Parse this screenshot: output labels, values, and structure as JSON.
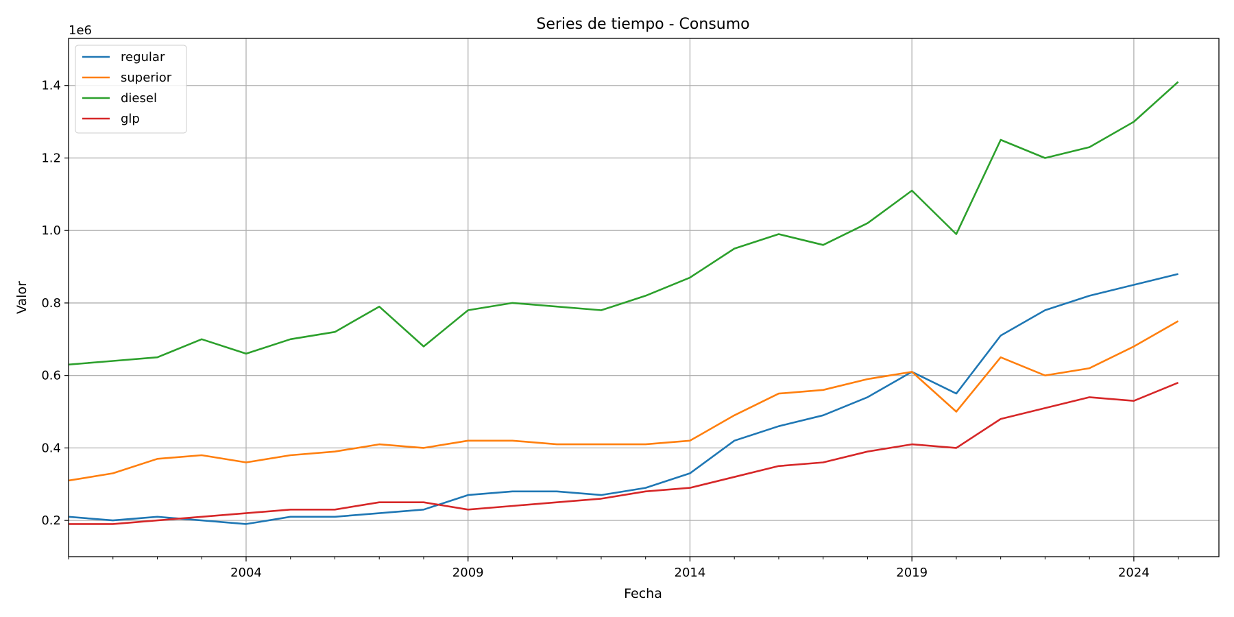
{
  "chart_data": {
    "type": "line",
    "title": "Series de tiempo - Consumo",
    "xlabel": "Fecha",
    "ylabel": "Valor",
    "y_scale_label": "1e6",
    "xlim": [
      "2000-01",
      "2025-12"
    ],
    "ylim": [
      0.1,
      1.53
    ],
    "x_ticks": [
      "2004",
      "2009",
      "2014",
      "2019",
      "2024"
    ],
    "y_ticks": [
      "0.2",
      "0.4",
      "0.6",
      "0.8",
      "1.0",
      "1.2",
      "1.4"
    ],
    "grid": true,
    "legend_position": "top-left",
    "x": [
      "2000",
      "2001",
      "2002",
      "2003",
      "2004",
      "2005",
      "2006",
      "2007",
      "2008",
      "2009",
      "2010",
      "2011",
      "2012",
      "2013",
      "2014",
      "2015",
      "2016",
      "2017",
      "2018",
      "2019",
      "2020",
      "2021",
      "2022",
      "2023",
      "2024",
      "2025"
    ],
    "series": [
      {
        "name": "regular",
        "color": "#1f77b4",
        "values": [
          0.21,
          0.2,
          0.21,
          0.2,
          0.19,
          0.21,
          0.21,
          0.22,
          0.23,
          0.27,
          0.28,
          0.28,
          0.27,
          0.29,
          0.33,
          0.42,
          0.46,
          0.49,
          0.54,
          0.61,
          0.55,
          0.71,
          0.78,
          0.82,
          0.85,
          0.88
        ]
      },
      {
        "name": "superior",
        "color": "#ff7f0e",
        "values": [
          0.31,
          0.33,
          0.37,
          0.38,
          0.36,
          0.38,
          0.39,
          0.41,
          0.4,
          0.42,
          0.42,
          0.41,
          0.41,
          0.41,
          0.42,
          0.49,
          0.55,
          0.56,
          0.59,
          0.61,
          0.5,
          0.65,
          0.6,
          0.62,
          0.68,
          0.75
        ]
      },
      {
        "name": "diesel",
        "color": "#2ca02c",
        "values": [
          0.63,
          0.64,
          0.65,
          0.7,
          0.66,
          0.7,
          0.72,
          0.79,
          0.68,
          0.78,
          0.8,
          0.79,
          0.78,
          0.82,
          0.87,
          0.95,
          0.99,
          0.96,
          1.02,
          1.11,
          0.99,
          1.25,
          1.2,
          1.23,
          1.3,
          1.41
        ]
      },
      {
        "name": "glp",
        "color": "#d62728",
        "values": [
          0.19,
          0.19,
          0.2,
          0.21,
          0.22,
          0.23,
          0.23,
          0.25,
          0.25,
          0.23,
          0.24,
          0.25,
          0.26,
          0.28,
          0.29,
          0.32,
          0.35,
          0.36,
          0.39,
          0.41,
          0.4,
          0.48,
          0.51,
          0.54,
          0.53,
          0.58
        ]
      }
    ]
  }
}
